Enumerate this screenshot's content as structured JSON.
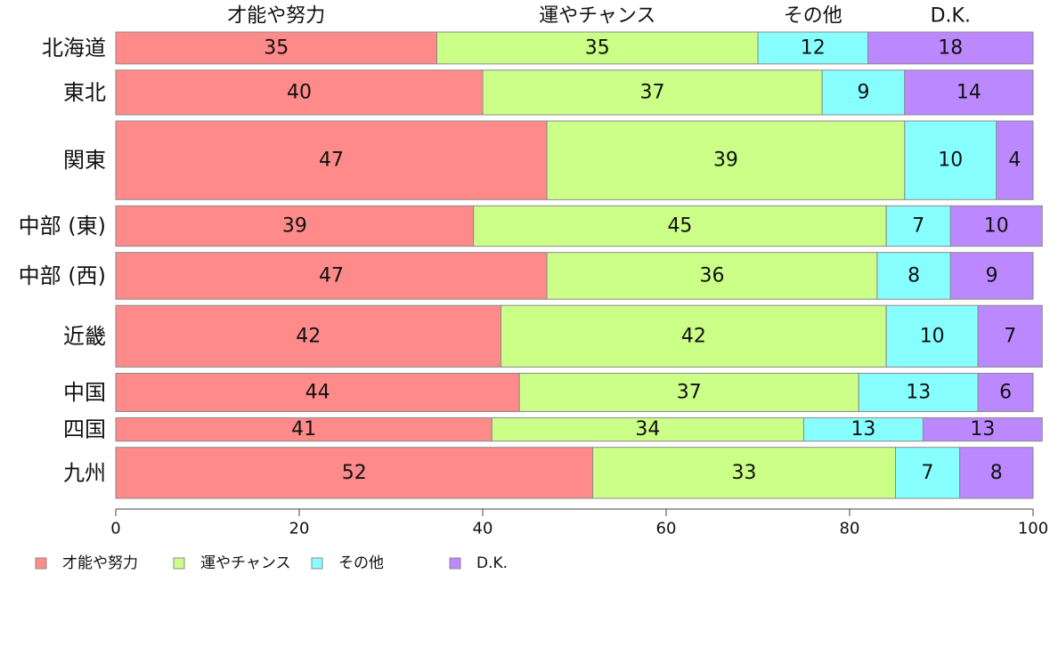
{
  "chart_data": {
    "type": "bar",
    "orientation": "horizontal",
    "stacked": true,
    "categories": [
      "北海道",
      "東北",
      "関東",
      "中部 (東)",
      "中部 (西)",
      "近畿",
      "中国",
      "四国",
      "九州"
    ],
    "bar_weights": [
      0.75,
      1.05,
      1.85,
      0.95,
      1.1,
      1.45,
      0.9,
      0.55,
      1.2
    ],
    "series": [
      {
        "name": "才能や努力",
        "color": "#ff8a8a",
        "values": [
          35,
          40,
          47,
          39,
          47,
          42,
          44,
          41,
          52
        ]
      },
      {
        "name": "運やチャンス",
        "color": "#ccff88",
        "values": [
          35,
          37,
          39,
          45,
          36,
          42,
          37,
          34,
          33
        ]
      },
      {
        "name": "その他",
        "color": "#88ffff",
        "values": [
          12,
          9,
          10,
          7,
          8,
          10,
          13,
          13,
          7
        ]
      },
      {
        "name": "D.K.",
        "color": "#bb88ff",
        "values": [
          18,
          14,
          4,
          10,
          9,
          7,
          6,
          13,
          8
        ]
      }
    ],
    "xlim": [
      0,
      100
    ],
    "xticks": [
      0,
      20,
      40,
      60,
      80,
      100
    ],
    "legend_position": "bottom-left",
    "grid": false
  }
}
